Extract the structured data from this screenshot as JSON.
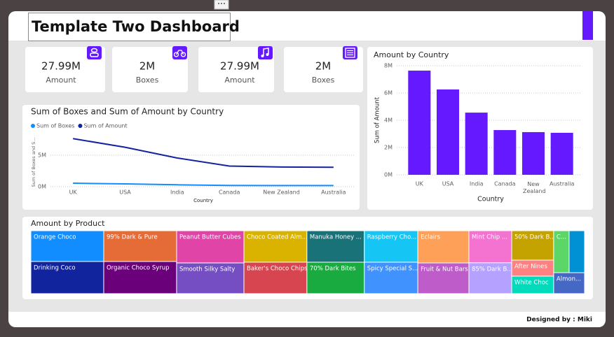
{
  "header": {
    "title": "Template Two Dashboard"
  },
  "cards": [
    {
      "value": "27.99M",
      "label": "Amount"
    },
    {
      "value": "2M",
      "label": "Boxes"
    },
    {
      "value": "27.99M",
      "label": "Amount"
    },
    {
      "value": "2M",
      "label": "Boxes"
    }
  ],
  "chart_data": [
    {
      "type": "line",
      "title": "Sum of Boxes and Sum of Amount by Country",
      "y_label": "Sum of Boxes and S...",
      "x_label": "Country",
      "categories": [
        "UK",
        "USA",
        "India",
        "Canada",
        "New Zealand",
        "Australia"
      ],
      "series": [
        {
          "name": "Sum of Boxes",
          "color": "#118dff",
          "values": [
            550000,
            450000,
            300000,
            200000,
            180000,
            180000
          ]
        },
        {
          "name": "Sum of Amount",
          "color": "#12239e",
          "values": [
            7640000,
            6260000,
            4560000,
            3280000,
            3130000,
            3080000
          ]
        }
      ],
      "ylim": [
        0,
        8000000
      ],
      "yticks": [
        {
          "value": 0,
          "label": "0M"
        },
        {
          "value": 5000000,
          "label": "5M"
        }
      ],
      "grid": true,
      "legend": "top-left"
    },
    {
      "type": "bar",
      "title": "Amount by Country",
      "y_label": "Sum of Amount",
      "x_label": "Country",
      "categories": [
        "UK",
        "USA",
        "India",
        "Canada",
        "New Zealand",
        "Australia"
      ],
      "values": [
        7640000,
        6260000,
        4560000,
        3280000,
        3130000,
        3080000
      ],
      "color": "#6419ff",
      "ylim": [
        0,
        8000000
      ],
      "yticks": [
        {
          "value": 0,
          "label": "0M"
        },
        {
          "value": 2000000,
          "label": "2M"
        },
        {
          "value": 4000000,
          "label": "4M"
        },
        {
          "value": 6000000,
          "label": "6M"
        },
        {
          "value": 8000000,
          "label": "8M"
        }
      ],
      "grid": true
    },
    {
      "type": "treemap",
      "title": "Amount by Product",
      "categories": [
        "Orange Choco",
        "Drinking Coco",
        "99% Dark & Pure",
        "Organic Choco Syrup",
        "Peanut Butter Cubes",
        "Smooth Silky Salty",
        "Choco Coated Alm...",
        "Baker's Choco Chips",
        "Manuka Honey ...",
        "70% Dark Bites",
        "Raspberry Cho...",
        "Spicy Special S...",
        "Eclairs",
        "Fruit & Nut Bars",
        "Mint Chip ...",
        "85% Dark B...",
        "50% Dark B...",
        "After Nines",
        "White Choc",
        "C...",
        null,
        "Almon..."
      ],
      "values": [
        1800000,
        1880000,
        1800000,
        1880000,
        1740000,
        1660000,
        1590000,
        1590000,
        1450000,
        1450000,
        1350000,
        1350000,
        1320000,
        1260000,
        1100000,
        1060000,
        990000,
        540000,
        590000,
        520000,
        520000,
        520000
      ],
      "colors": [
        "#118dff",
        "#12239e",
        "#e66c37",
        "#6b007b",
        "#e044a7",
        "#744ec2",
        "#d9b300",
        "#d64550",
        "#197278",
        "#1aab40",
        "#15c6f4",
        "#4092ff",
        "#ffa058",
        "#be5dc9",
        "#f472d0",
        "#b5a1ff",
        "#c4a200",
        "#ff8080",
        "#00dbbc",
        "#5bd667",
        "#0091d5",
        "#4668c5"
      ]
    }
  ],
  "footer": {
    "text": "Designed by : Miki"
  }
}
